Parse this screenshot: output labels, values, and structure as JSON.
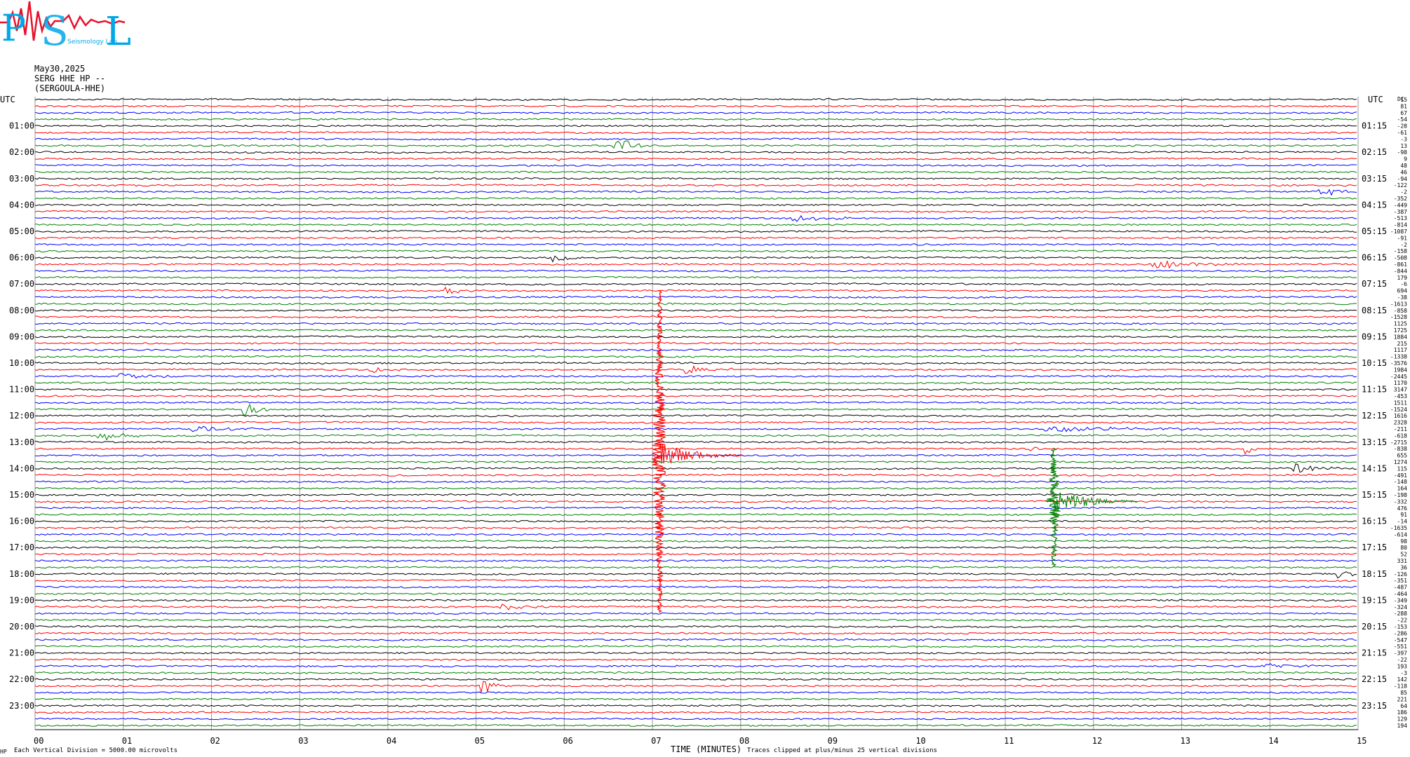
{
  "logo": {
    "letters": [
      "P",
      "S",
      "L"
    ],
    "tagline": "Seismology Lab"
  },
  "header": {
    "date": "May30,2025",
    "channel": "SERG HHE HP --",
    "station": "(SERGOULA-HHE)"
  },
  "colors": {
    "trace_cycle": [
      "#000000",
      "#ff0000",
      "#0000ff",
      "#008000"
    ],
    "grid": "#9a9a9a",
    "logo_cyan": "#00a8e8",
    "logo_red": "#e8102a"
  },
  "chart_data": {
    "type": "line",
    "title": "SERG HHE HP --",
    "xlabel": "TIME (MINUTES)",
    "ylabel": "UTC",
    "right_label": "UTC",
    "corner_label": "DC",
    "xlim": [
      0,
      15
    ],
    "x_ticks": [
      "00",
      "01",
      "02",
      "03",
      "04",
      "05",
      "06",
      "07",
      "08",
      "09",
      "10",
      "11",
      "12",
      "13",
      "14",
      "15"
    ],
    "rows_per_hour": 4,
    "left_hour_labels": [
      "01:00",
      "02:00",
      "03:00",
      "04:00",
      "05:00",
      "06:00",
      "07:00",
      "08:00",
      "09:00",
      "10:00",
      "11:00",
      "12:00",
      "13:00",
      "14:00",
      "15:00",
      "16:00",
      "17:00",
      "18:00",
      "19:00",
      "20:00",
      "21:00",
      "22:00",
      "23:00"
    ],
    "right_hour_labels": [
      "01:15",
      "02:15",
      "03:15",
      "04:15",
      "05:15",
      "06:15",
      "07:15",
      "08:15",
      "09:15",
      "10:15",
      "11:15",
      "12:15",
      "13:15",
      "14:15",
      "15:15",
      "16:15",
      "17:15",
      "18:15",
      "19:15",
      "20:15",
      "21:15",
      "22:15",
      "23:15"
    ],
    "dc_offsets": [
      "15",
      "81",
      "67",
      "-54",
      "-28",
      "-61",
      "-3",
      "13",
      "-98",
      "9",
      "48",
      "46",
      "-94",
      "-122",
      "-2",
      "-352",
      "-449",
      "-387",
      "-513",
      "-814",
      "-1087",
      "-91",
      "-2",
      "-158",
      "-508",
      "-861",
      "-844",
      "179",
      "-6",
      "694",
      "-38",
      "-1613",
      "-858",
      "-1528",
      "1125",
      "1725",
      "1884",
      "215",
      "1117",
      "-1338",
      "-3576",
      "1984",
      "-2445",
      "1170",
      "3147",
      "-453",
      "1511",
      "-1524",
      "1616",
      "2328",
      "-211",
      "-618",
      "-2715",
      "-838",
      "655",
      "1274",
      "115",
      "-491",
      "-148",
      "164",
      "-198",
      "-332",
      "476",
      "91",
      "-14",
      "-1635",
      "-614",
      "98",
      "80",
      "52",
      "331",
      "36",
      "-126",
      "-351",
      "-487",
      "-464",
      "-349",
      "-324",
      "-288",
      "-22",
      "-153",
      "-286",
      "-547",
      "-551",
      "-397",
      "-22",
      "193",
      "-3",
      "142",
      "-118",
      "85",
      "221",
      "64",
      "186",
      "129",
      "194"
    ],
    "events": [
      {
        "row": 7,
        "minute": 6.6,
        "amplitude_div": 0.6,
        "duration_min": 0.4
      },
      {
        "row": 9,
        "minute": 5.95,
        "amplitude_div": 0.15,
        "duration_min": 0.1
      },
      {
        "row": 10,
        "minute": 7.4,
        "amplitude_div": 0.15,
        "duration_min": 0.1
      },
      {
        "row": 14,
        "minute": 14.6,
        "amplitude_div": 0.3,
        "duration_min": 0.6
      },
      {
        "row": 18,
        "minute": 8.6,
        "amplitude_div": 0.3,
        "duration_min": 0.8
      },
      {
        "row": 24,
        "minute": 5.9,
        "amplitude_div": 0.25,
        "duration_min": 0.6
      },
      {
        "row": 25,
        "minute": 12.7,
        "amplitude_div": 0.3,
        "duration_min": 1.0
      },
      {
        "row": 29,
        "minute": 4.7,
        "amplitude_div": 0.25,
        "duration_min": 0.4
      },
      {
        "row": 41,
        "minute": 3.8,
        "amplitude_div": 0.25,
        "duration_min": 0.5
      },
      {
        "row": 41,
        "minute": 7.4,
        "amplitude_div": 0.3,
        "duration_min": 0.6
      },
      {
        "row": 42,
        "minute": 1.0,
        "amplitude_div": 0.25,
        "duration_min": 0.6
      },
      {
        "row": 47,
        "minute": 2.4,
        "amplitude_div": 0.5,
        "duration_min": 0.3
      },
      {
        "row": 50,
        "minute": 1.8,
        "amplitude_div": 0.25,
        "duration_min": 0.8
      },
      {
        "row": 51,
        "minute": 0.75,
        "amplitude_div": 0.4,
        "duration_min": 0.5
      },
      {
        "row": 50,
        "minute": 11.5,
        "amplitude_div": 0.2,
        "duration_min": 2.5
      },
      {
        "row": 53,
        "minute": 11.3,
        "amplitude_div": 0.2,
        "duration_min": 0.2
      },
      {
        "row": 53,
        "minute": 13.75,
        "amplitude_div": 0.5,
        "duration_min": 0.15
      },
      {
        "row": 56,
        "minute": 14.3,
        "amplitude_div": 0.35,
        "duration_min": 0.6
      },
      {
        "row": 72,
        "minute": 14.8,
        "amplitude_div": 0.25,
        "duration_min": 0.4
      },
      {
        "row": 77,
        "minute": 5.3,
        "amplitude_div": 0.25,
        "duration_min": 0.6
      },
      {
        "row": 86,
        "minute": 14.0,
        "amplitude_div": 0.2,
        "duration_min": 0.6
      },
      {
        "row": 89,
        "minute": 5.1,
        "amplitude_div": 0.5,
        "duration_min": 0.3
      }
    ],
    "major_quakes": [
      {
        "color": "#ff0000",
        "minute": 7.08,
        "start_row": 29,
        "end_row": 78,
        "peak_row": 54
      },
      {
        "color": "#008000",
        "minute": 11.55,
        "start_row": 53,
        "end_row": 71,
        "peak_row": 61
      }
    ],
    "footer_left": "Each Vertical Division = 5000.00 microvolts",
    "footer_right": "Traces clipped at plus/minus 25 vertical divisions",
    "footer_corner": "HP"
  }
}
